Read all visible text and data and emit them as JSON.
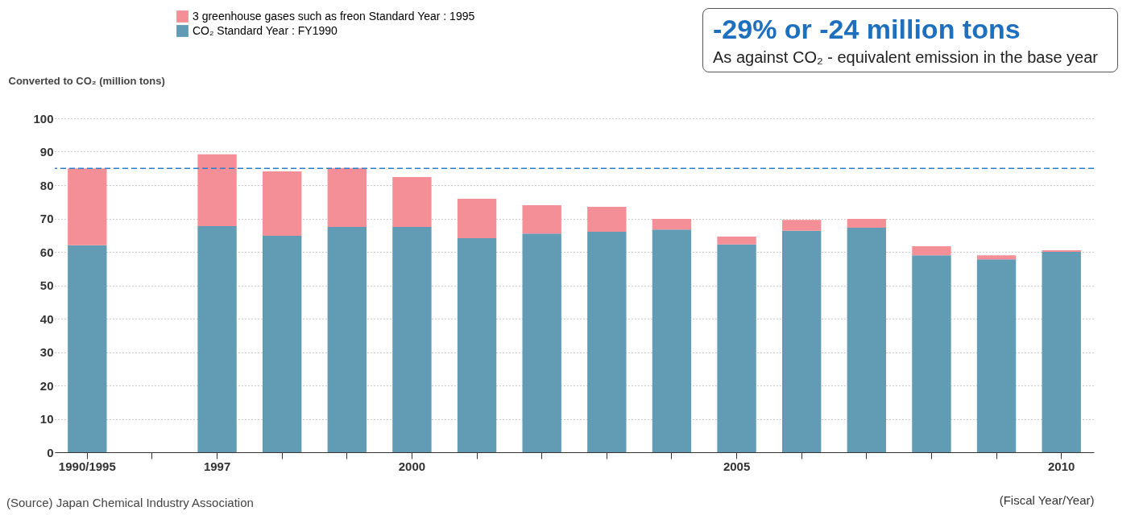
{
  "chart_data": {
    "type": "bar",
    "stacked": true,
    "ylabel": "Converted to CO₂ (million tons)",
    "xlabel": "(Fiscal Year/Year)",
    "categories": [
      "1990/1995",
      null,
      "1997",
      null,
      null,
      "2000",
      null,
      null,
      null,
      null,
      "2005",
      null,
      null,
      null,
      null,
      "2010"
    ],
    "series": [
      {
        "name": "CO₂ Standard Year : FY1990",
        "color": "#629bb4",
        "values": [
          62,
          null,
          67.7,
          64.8,
          67.5,
          67.5,
          64.1,
          65.5,
          66,
          66.7,
          62.2,
          66.3,
          67.2,
          59,
          57.8,
          60
        ]
      },
      {
        "name": "3 greenhouse gases such as freon Standard Year : 1995",
        "color": "#f48f97",
        "values": [
          23,
          null,
          21.5,
          19.3,
          17.6,
          14.9,
          11.8,
          8.5,
          7.5,
          3.2,
          2.4,
          3.3,
          2.7,
          2.7,
          1.2,
          0.5
        ]
      }
    ],
    "ylim": [
      0,
      100
    ],
    "yticks": [
      0,
      10,
      20,
      30,
      40,
      50,
      60,
      70,
      80,
      90,
      100
    ],
    "grid": "y",
    "legend": "top left",
    "ref_lines": [
      {
        "axis": "y",
        "value": 85,
        "label": null,
        "color": "#2a7fc8",
        "line_style": "dashed"
      }
    ],
    "annotations": [
      "-29% or -24 million tons",
      "As against CO₂ - equivalent emission in the base year",
      "(Source) Japan Chemical Industry Association"
    ]
  }
}
